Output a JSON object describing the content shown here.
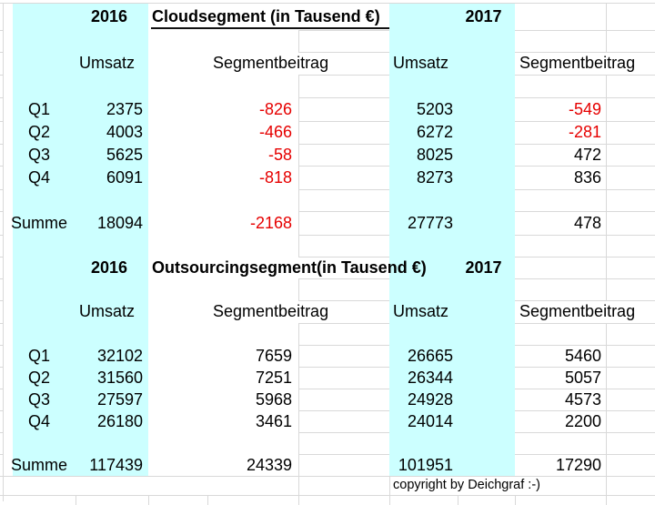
{
  "colors": {
    "highlight": "#ccffff",
    "negative": "#e60000",
    "gridline": "#d9d9d9",
    "text": "#000000"
  },
  "blocks": [
    {
      "year_left": "2016",
      "title": "Cloudsegment (in Tausend €)",
      "year_right": "2017",
      "headers": {
        "umsatz_2016": "Umsatz",
        "segment_2016": "Segmentbeitrag",
        "umsatz_2017": "Umsatz",
        "segment_2017": "Segmentbeitrag"
      },
      "rows": [
        {
          "label": "Q1",
          "umsatz_2016": "2375",
          "segment_2016": "-826",
          "umsatz_2017": "5203",
          "segment_2017": "-549"
        },
        {
          "label": "Q2",
          "umsatz_2016": "4003",
          "segment_2016": "-466",
          "umsatz_2017": "6272",
          "segment_2017": "-281"
        },
        {
          "label": "Q3",
          "umsatz_2016": "5625",
          "segment_2016": "-58",
          "umsatz_2017": "8025",
          "segment_2017": "472"
        },
        {
          "label": "Q4",
          "umsatz_2016": "6091",
          "segment_2016": "-818",
          "umsatz_2017": "8273",
          "segment_2017": "836"
        }
      ],
      "summe": {
        "label": "Summe",
        "umsatz_2016": "18094",
        "segment_2016": "-2168",
        "umsatz_2017": "27773",
        "segment_2017": "478"
      }
    },
    {
      "year_left": "2016",
      "title": "Outsourcingsegment(in Tausend €)",
      "year_right": "2017",
      "headers": {
        "umsatz_2016": "Umsatz",
        "segment_2016": "Segmentbeitrag",
        "umsatz_2017": "Umsatz",
        "segment_2017": "Segmentbeitrag"
      },
      "rows": [
        {
          "label": "Q1",
          "umsatz_2016": "32102",
          "segment_2016": "7659",
          "umsatz_2017": "26665",
          "segment_2017": "5460"
        },
        {
          "label": "Q2",
          "umsatz_2016": "31560",
          "segment_2016": "7251",
          "umsatz_2017": "26344",
          "segment_2017": "5057"
        },
        {
          "label": "Q3",
          "umsatz_2016": "27597",
          "segment_2016": "5968",
          "umsatz_2017": "24928",
          "segment_2017": "4573"
        },
        {
          "label": "Q4",
          "umsatz_2016": "26180",
          "segment_2016": "3461",
          "umsatz_2017": "24014",
          "segment_2017": "2200"
        }
      ],
      "summe": {
        "label": "Summe",
        "umsatz_2016": "117439",
        "segment_2016": "24339",
        "umsatz_2017": "101951",
        "segment_2017": "17290"
      }
    }
  ],
  "footer": {
    "copyright": "copyright by Deichgraf :-)"
  }
}
